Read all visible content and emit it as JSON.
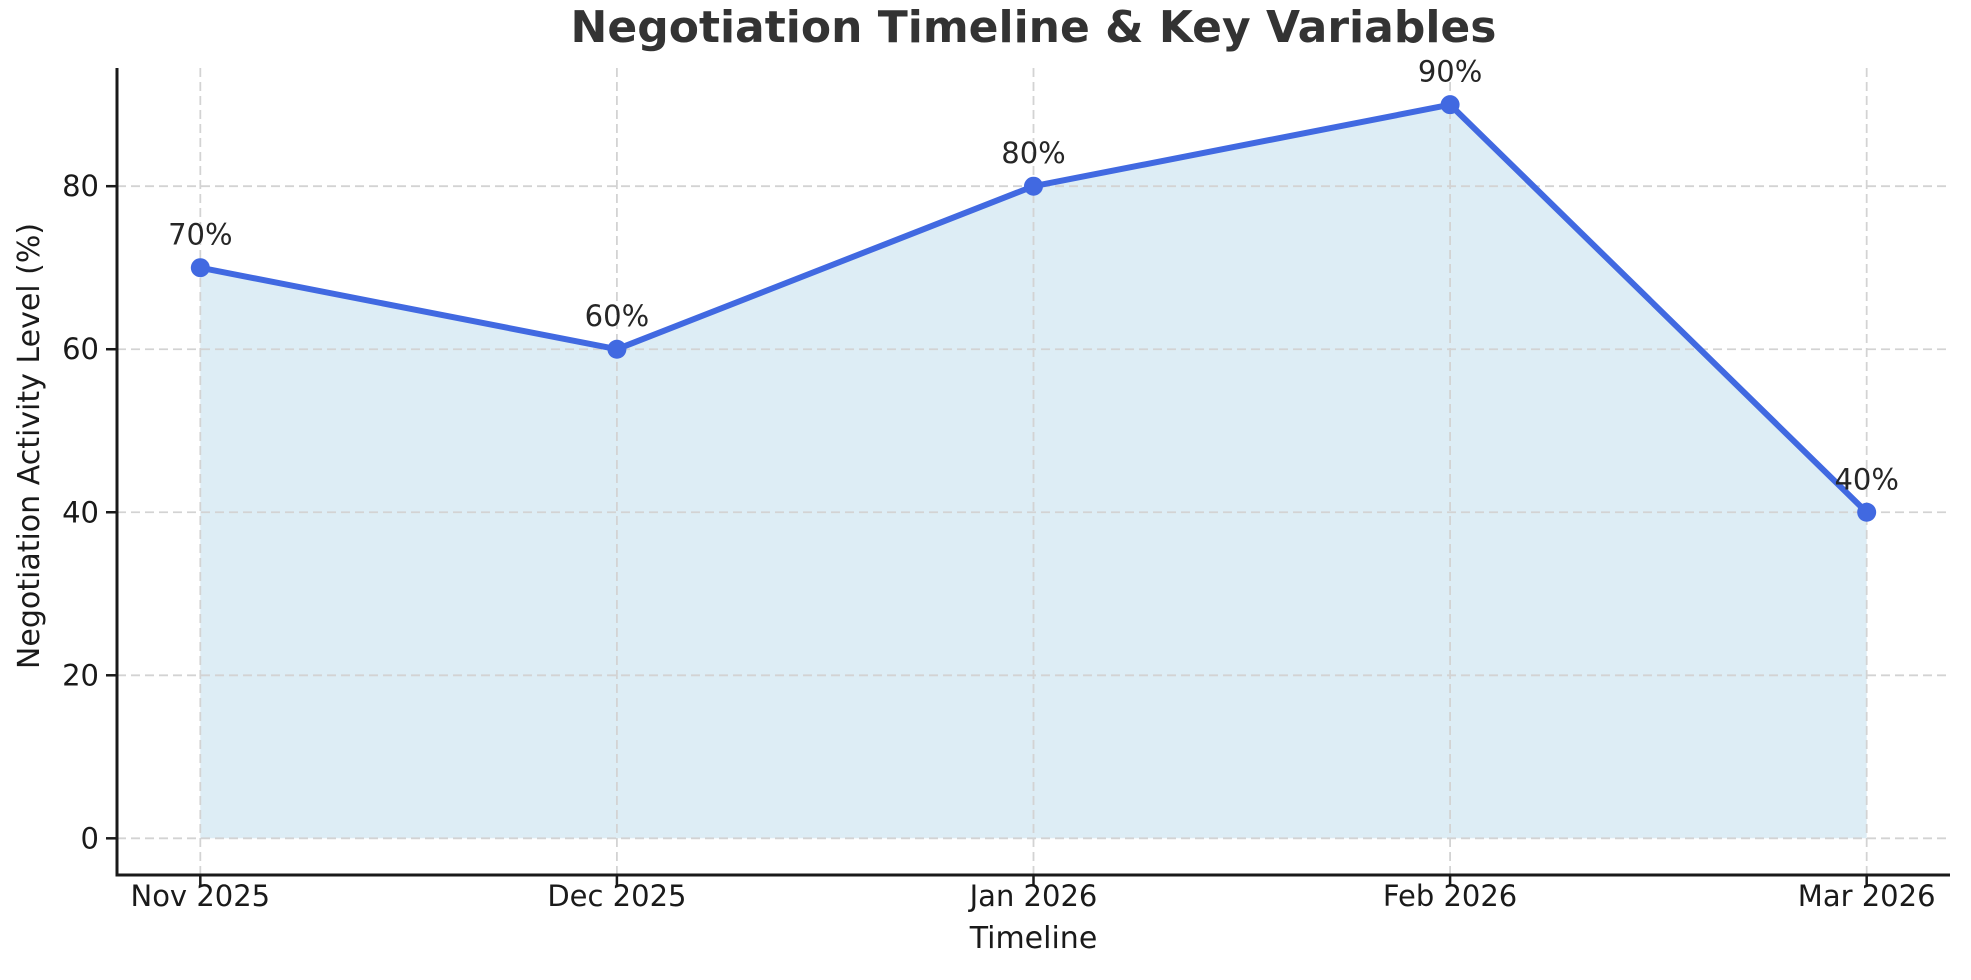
{
  "chart_data": {
    "type": "area",
    "title": "Negotiation Timeline & Key Variables",
    "xlabel": "Timeline",
    "ylabel": "Negotiation Activity Level (%)",
    "categories": [
      "Nov 2025",
      "Dec 2025",
      "Jan 2026",
      "Feb 2026",
      "Mar 2026"
    ],
    "series": [
      {
        "name": "Negotiation Activity Level",
        "values": [
          70,
          60,
          80,
          90,
          40
        ],
        "point_labels": [
          "70%",
          "60%",
          "80%",
          "90%",
          "40%"
        ]
      }
    ],
    "yticks": [
      0,
      20,
      40,
      60,
      80
    ],
    "ylim": [
      -4.5,
      94.5
    ],
    "grid": "dashed, horizontal and vertical, drawn above fill",
    "legend_position": "none",
    "colors": {
      "line": "#4169E1",
      "marker": "#4169E1",
      "fill": "#DDEDF5",
      "grid": "#D3D3D3",
      "spine": "#1A1A1A",
      "tick_text": "#1A1A1A",
      "title_text": "#333333",
      "point_label_text": "#262626"
    }
  }
}
